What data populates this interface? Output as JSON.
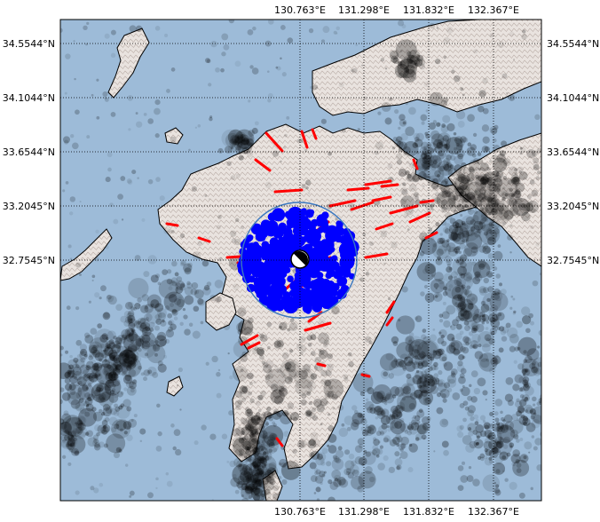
{
  "map": {
    "frame_color": "#000000",
    "sea_color": "#9dbbd8",
    "land_color": "#e6e0dc",
    "fault_color": "#ff0000",
    "aftershock_color": "#0000ff",
    "radius_circle_color": "#3a78c0",
    "background_seismicity_color": "#000000",
    "latitude_labels": [
      "34.5544°N",
      "34.1044°N",
      "33.6544°N",
      "33.2045°N",
      "32.7545°N"
    ],
    "longitude_labels": [
      "130.763°E",
      "131.298°E",
      "131.832°E",
      "132.367°E"
    ],
    "grid": "dotted",
    "mainshock_symbol": "beachball"
  }
}
